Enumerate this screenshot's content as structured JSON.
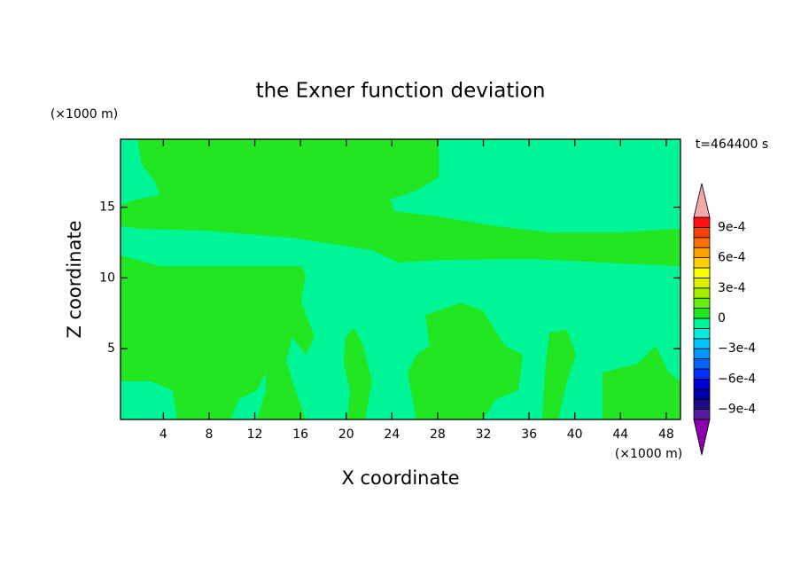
{
  "chart_data": {
    "type": "contour",
    "title": "the Exner function deviation",
    "xlabel": "X coordinate",
    "ylabel": "Z coordinate",
    "xunit": "(×1000 m)",
    "yunit": "(×1000 m)",
    "time_label": "t=464400 s",
    "xlim": [
      0.25,
      49.25
    ],
    "xticks": [
      4,
      8,
      12,
      16,
      20,
      24,
      28,
      32,
      36,
      40,
      44,
      48
    ],
    "ylim": [
      0,
      19.8
    ],
    "yticks": [
      5,
      10,
      15
    ],
    "colorbar": {
      "levels": [
        -0.001,
        -0.0009,
        -0.0008,
        -0.0007,
        -0.0006,
        -0.0005,
        -0.0004,
        -0.0003,
        -0.0002,
        -0.0001,
        0,
        0.0001,
        0.0002,
        0.0003,
        0.0004,
        0.0005,
        0.0006,
        0.0007,
        0.0008,
        0.0009,
        0.001
      ],
      "colors": [
        "#5a1aa0",
        "#200a8c",
        "#0000a8",
        "#0000d8",
        "#0030ff",
        "#0064ff",
        "#0096ff",
        "#00c4ff",
        "#00eee0",
        "#00f596",
        "#22e622",
        "#66ee00",
        "#a0f000",
        "#dcf000",
        "#ffff00",
        "#ffd000",
        "#ffa000",
        "#ff7000",
        "#ff4000",
        "#ff1010"
      ],
      "under_color": "#8b00a8",
      "over_color": "#f4a8a8",
      "ticks": [
        {
          "value": 0.0009,
          "label": "9e-4"
        },
        {
          "value": 0.0006,
          "label": "6e-4"
        },
        {
          "value": 0.0003,
          "label": "3e-4"
        },
        0,
        {
          "value": -0.0003,
          "label": "−3e-4"
        },
        {
          "value": -0.0006,
          "label": "−6e-4"
        },
        {
          "value": -0.0009,
          "label": "−9e-4"
        }
      ]
    }
  }
}
